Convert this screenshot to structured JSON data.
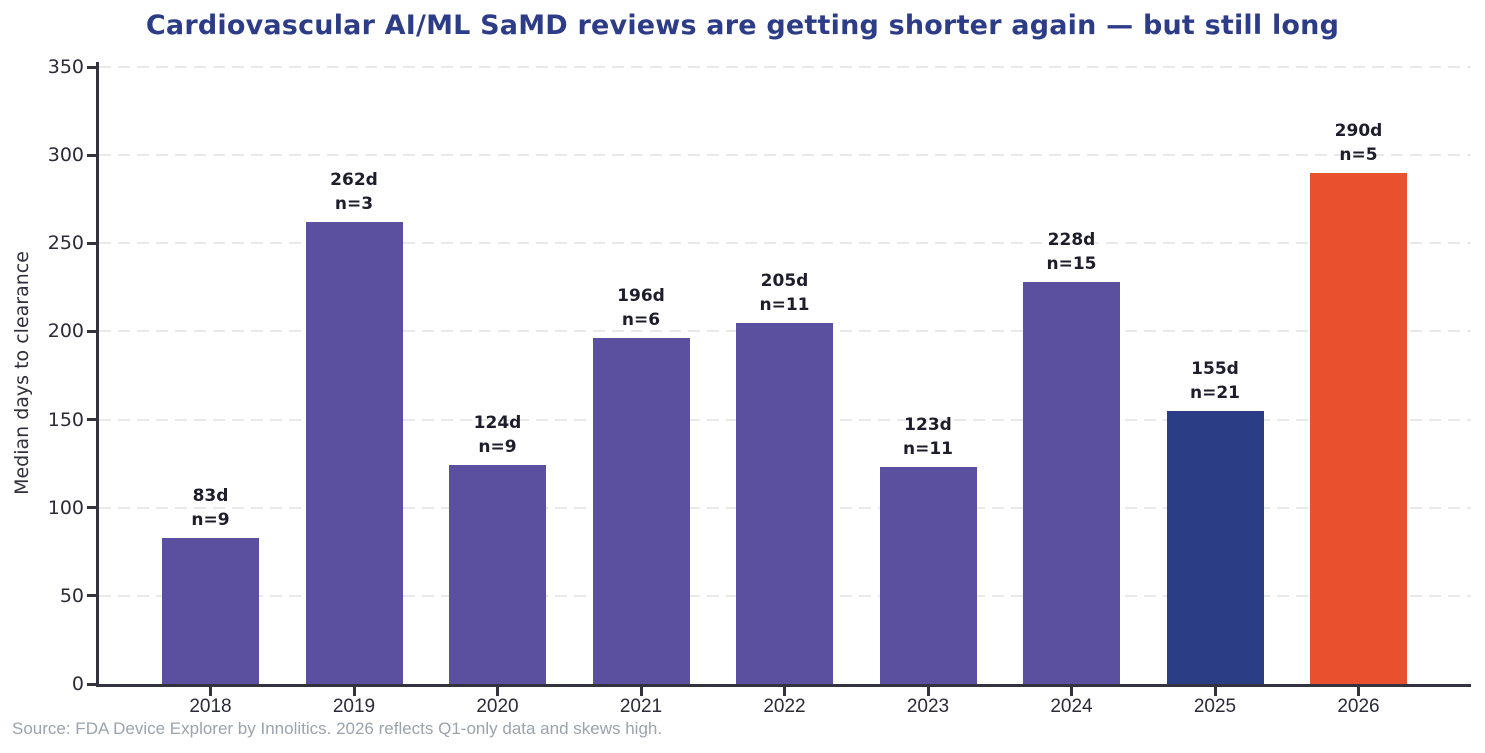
{
  "chart_data": {
    "type": "bar",
    "title": "Cardiovascular AI/ML SaMD reviews are getting shorter again — but still long",
    "xlabel": "",
    "ylabel": "Median days to clearance",
    "ylim": [
      0,
      350
    ],
    "yticks": [
      0,
      50,
      100,
      150,
      200,
      250,
      300,
      350
    ],
    "grid": "horizontal-dashed",
    "legend_position": "none",
    "categories": [
      "2018",
      "2019",
      "2020",
      "2021",
      "2022",
      "2023",
      "2024",
      "2025",
      "2026"
    ],
    "values": [
      83,
      262,
      124,
      196,
      205,
      123,
      228,
      155,
      290
    ],
    "sample_sizes": [
      9,
      3,
      9,
      6,
      11,
      11,
      15,
      21,
      5
    ],
    "bar_labels": [
      {
        "days": "83d",
        "n": "n=9"
      },
      {
        "days": "262d",
        "n": "n=3"
      },
      {
        "days": "124d",
        "n": "n=9"
      },
      {
        "days": "196d",
        "n": "n=6"
      },
      {
        "days": "205d",
        "n": "n=11"
      },
      {
        "days": "123d",
        "n": "n=11"
      },
      {
        "days": "228d",
        "n": "n=15"
      },
      {
        "days": "155d",
        "n": "n=21"
      },
      {
        "days": "290d",
        "n": "n=5"
      }
    ],
    "bar_colors": [
      "#5b50a0",
      "#5b50a0",
      "#5b50a0",
      "#5b50a0",
      "#5b50a0",
      "#5b50a0",
      "#5b50a0",
      "#2b3d85",
      "#e8502e"
    ],
    "colors": {
      "bar_default": "#5b50a0",
      "bar_2025_highlight": "#2b3d85",
      "bar_2026_highlight": "#e8502e",
      "title": "#2c3c87",
      "annotation_text": "#1d1d2b",
      "axis": "#33333f",
      "gridline": "#e9e9e9",
      "source_text": "#9ba3ad"
    },
    "source_note": "Source: FDA Device Explorer by Innolitics. 2026 reflects Q1-only data and skews high."
  }
}
